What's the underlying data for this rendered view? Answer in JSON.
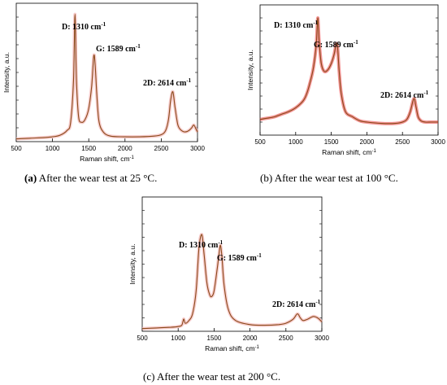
{
  "chart_data": [
    {
      "type": "line",
      "panel_label": "(a)",
      "caption": "After the wear test at 25 °C.",
      "xlabel": "Raman shift, cm",
      "xlabel_sup": "-1",
      "ylabel": "Intensity, a.u.",
      "xlim": [
        500,
        3000
      ],
      "ylim": [
        0,
        1
      ],
      "xticks": [
        500,
        1000,
        1500,
        2000,
        2500,
        3000
      ],
      "x": [
        500,
        700,
        900,
        1000,
        1100,
        1200,
        1250,
        1290,
        1310,
        1330,
        1360,
        1400,
        1450,
        1500,
        1540,
        1570,
        1589,
        1610,
        1640,
        1700,
        1800,
        2000,
        2200,
        2400,
        2500,
        2560,
        2600,
        2630,
        2660,
        2690,
        2730,
        2780,
        2830,
        2880,
        2920,
        2950,
        2980,
        3000
      ],
      "series": [
        {
          "values": [
            0.02,
            0.025,
            0.03,
            0.035,
            0.045,
            0.08,
            0.14,
            0.45,
            0.92,
            0.45,
            0.18,
            0.14,
            0.16,
            0.24,
            0.4,
            0.62,
            0.55,
            0.35,
            0.15,
            0.07,
            0.04,
            0.035,
            0.035,
            0.04,
            0.05,
            0.08,
            0.16,
            0.3,
            0.36,
            0.25,
            0.12,
            0.08,
            0.07,
            0.08,
            0.1,
            0.12,
            0.09,
            0.07
          ]
        }
      ],
      "annotations": [
        {
          "label": "D: 1310 cm",
          "sup": "-1",
          "x": 1310
        },
        {
          "label": "G: 1589 cm",
          "sup": "-1",
          "x": 1589
        },
        {
          "label": "2D: 2614 cm",
          "sup": "-1",
          "x": 2660
        }
      ],
      "line_color": "#8a4a1a",
      "band_color": "#f3b6b6"
    },
    {
      "type": "line",
      "panel_label": "(b)",
      "caption": "After the wear test at 100 °C.",
      "xlabel": "Raman shift, cm",
      "xlabel_sup": "-1",
      "ylabel": "Intensity, a.u.",
      "xlim": [
        500,
        3000
      ],
      "ylim": [
        0,
        1
      ],
      "xticks": [
        500,
        1000,
        1500,
        2000,
        2500,
        3000
      ],
      "x": [
        500,
        600,
        700,
        800,
        900,
        1000,
        1100,
        1150,
        1200,
        1250,
        1290,
        1310,
        1330,
        1360,
        1400,
        1450,
        1500,
        1540,
        1570,
        1589,
        1610,
        1640,
        1700,
        1800,
        1900,
        2000,
        2200,
        2400,
        2500,
        2560,
        2610,
        2660,
        2690,
        2720,
        2760,
        2820,
        2900,
        2950,
        3000
      ],
      "series": [
        {
          "values": [
            0.12,
            0.13,
            0.14,
            0.16,
            0.18,
            0.21,
            0.26,
            0.31,
            0.4,
            0.52,
            0.7,
            0.9,
            0.72,
            0.55,
            0.49,
            0.5,
            0.55,
            0.62,
            0.7,
            0.67,
            0.5,
            0.32,
            0.18,
            0.14,
            0.11,
            0.1,
            0.09,
            0.09,
            0.1,
            0.12,
            0.18,
            0.28,
            0.22,
            0.14,
            0.11,
            0.1,
            0.1,
            0.1,
            0.1
          ]
        }
      ],
      "annotations": [
        {
          "label": "D: 1310 cm",
          "sup": "-1",
          "x": 1310
        },
        {
          "label": "G: 1589 cm",
          "sup": "-1",
          "x": 1589
        },
        {
          "label": "2D: 2614 cm",
          "sup": "-1",
          "x": 2660
        }
      ],
      "line_color": "#8a4a1a",
      "band_color": "#e83a3a"
    },
    {
      "type": "line",
      "panel_label": "(c)",
      "caption": "After the wear test at 200 °C.",
      "xlabel": "Raman shift, cm",
      "xlabel_sup": "-1",
      "ylabel": "Intensity, a.u.",
      "xlim": [
        500,
        3000
      ],
      "ylim": [
        0,
        1
      ],
      "xticks": [
        500,
        1000,
        1500,
        2000,
        2500,
        3000
      ],
      "x": [
        500,
        700,
        900,
        1000,
        1050,
        1070,
        1080,
        1100,
        1150,
        1200,
        1250,
        1290,
        1330,
        1360,
        1400,
        1440,
        1470,
        1500,
        1540,
        1570,
        1589,
        1610,
        1640,
        1700,
        1800,
        2000,
        2200,
        2400,
        2500,
        2600,
        2660,
        2700,
        2740,
        2800,
        2880,
        2940,
        3000
      ],
      "series": [
        {
          "values": [
            0.02,
            0.025,
            0.03,
            0.035,
            0.045,
            0.08,
            0.09,
            0.06,
            0.08,
            0.13,
            0.3,
            0.62,
            0.72,
            0.58,
            0.36,
            0.27,
            0.26,
            0.3,
            0.45,
            0.58,
            0.64,
            0.55,
            0.34,
            0.16,
            0.08,
            0.05,
            0.045,
            0.05,
            0.06,
            0.09,
            0.13,
            0.1,
            0.08,
            0.09,
            0.11,
            0.1,
            0.07
          ]
        }
      ],
      "annotations": [
        {
          "label": "D: 1310 cm",
          "sup": "-1",
          "x": 1330
        },
        {
          "label": "G: 1589 cm",
          "sup": "-1",
          "x": 1589
        },
        {
          "label": "2D: 2614 cm",
          "sup": "-1",
          "x": 2660
        }
      ],
      "line_color": "#8a4a1a",
      "band_color": "#f3b6b6"
    }
  ]
}
